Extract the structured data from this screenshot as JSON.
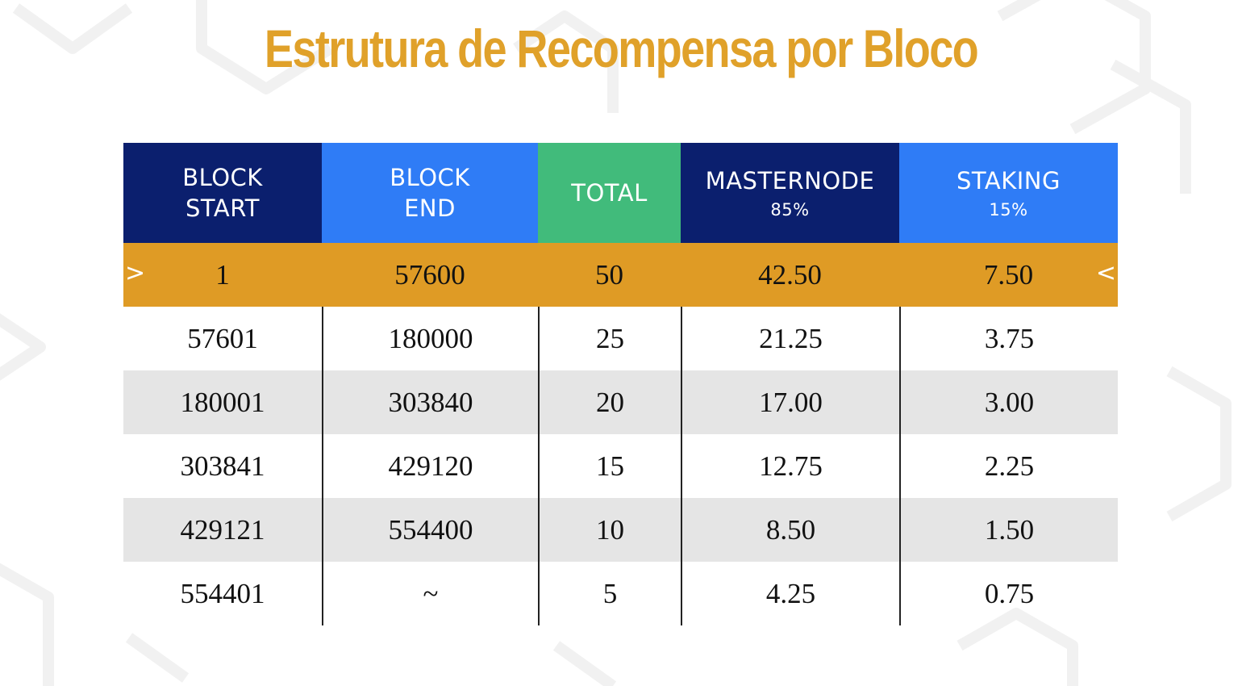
{
  "title": "Estrutura de Recompensa por Bloco",
  "colors": {
    "title": "#e0a12a",
    "header_navy": "#0b1f6e",
    "header_blue": "#2f7cf6",
    "header_green": "#41bb7b",
    "highlight_row": "#df9b25",
    "stripe_row": "#e5e5e5"
  },
  "headers": [
    {
      "line1": "BLOCK",
      "line2": "START",
      "sub": ""
    },
    {
      "line1": "BLOCK",
      "line2": "END",
      "sub": ""
    },
    {
      "line1": "TOTAL",
      "line2": "",
      "sub": ""
    },
    {
      "line1": "MASTERNODE",
      "line2": "",
      "sub": "85%"
    },
    {
      "line1": "STAKING",
      "line2": "",
      "sub": "15%"
    }
  ],
  "highlight_markers": {
    "left": ">",
    "right": "<"
  },
  "rows": [
    [
      "1",
      "57600",
      "50",
      "42.50",
      "7.50"
    ],
    [
      "57601",
      "180000",
      "25",
      "21.25",
      "3.75"
    ],
    [
      "180001",
      "303840",
      "20",
      "17.00",
      "3.00"
    ],
    [
      "303841",
      "429120",
      "15",
      "12.75",
      "2.25"
    ],
    [
      "429121",
      "554400",
      "10",
      "8.50",
      "1.50"
    ],
    [
      "554401",
      "~",
      "5",
      "4.25",
      "0.75"
    ]
  ]
}
